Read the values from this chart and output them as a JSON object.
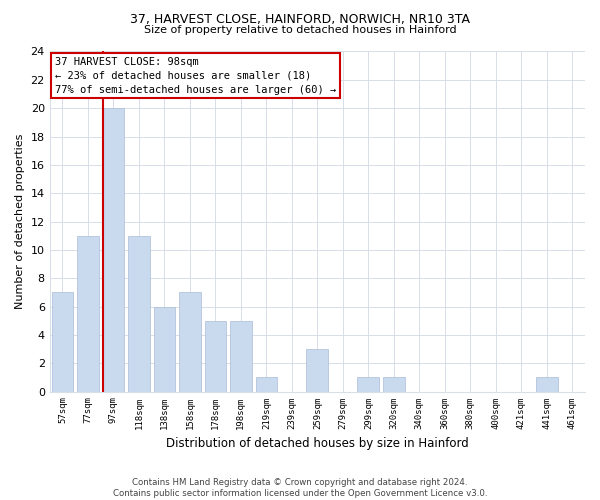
{
  "title1": "37, HARVEST CLOSE, HAINFORD, NORWICH, NR10 3TA",
  "title2": "Size of property relative to detached houses in Hainford",
  "xlabel": "Distribution of detached houses by size in Hainford",
  "ylabel": "Number of detached properties",
  "categories": [
    "57sqm",
    "77sqm",
    "97sqm",
    "118sqm",
    "138sqm",
    "158sqm",
    "178sqm",
    "198sqm",
    "219sqm",
    "239sqm",
    "259sqm",
    "279sqm",
    "299sqm",
    "320sqm",
    "340sqm",
    "360sqm",
    "380sqm",
    "400sqm",
    "421sqm",
    "441sqm",
    "461sqm"
  ],
  "values": [
    7,
    11,
    20,
    11,
    6,
    7,
    5,
    5,
    1,
    0,
    3,
    0,
    1,
    1,
    0,
    0,
    0,
    0,
    0,
    1,
    0
  ],
  "bar_color": "#c9d9ee",
  "bar_edge_color": "#aabdd8",
  "subject_line_color": "#cc0000",
  "ylim": [
    0,
    24
  ],
  "yticks": [
    0,
    2,
    4,
    6,
    8,
    10,
    12,
    14,
    16,
    18,
    20,
    22,
    24
  ],
  "annotation_line1": "37 HARVEST CLOSE: 98sqm",
  "annotation_line2": "← 23% of detached houses are smaller (18)",
  "annotation_line3": "77% of semi-detached houses are larger (60) →",
  "annotation_box_color": "#ffffff",
  "annotation_box_edge": "#cc0000",
  "footer_text": "Contains HM Land Registry data © Crown copyright and database right 2024.\nContains public sector information licensed under the Open Government Licence v3.0.",
  "bg_color": "#ffffff",
  "grid_color": "#d8dfe8"
}
